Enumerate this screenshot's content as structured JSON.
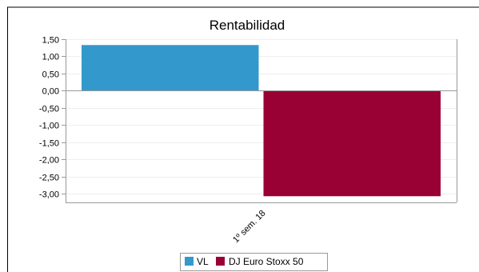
{
  "chart_data": {
    "type": "bar",
    "title": "Rentabilidad",
    "categories": [
      "1º sem. 18"
    ],
    "series": [
      {
        "name": "VL",
        "values": [
          1.33
        ],
        "color": "#3399cc"
      },
      {
        "name": "DJ Euro Stoxx 50",
        "values": [
          -3.07
        ],
        "color": "#990033"
      }
    ],
    "ylim": [
      -3.25,
      1.5
    ],
    "yticks": [
      1.5,
      1.0,
      0.5,
      0.0,
      -0.5,
      -1.0,
      -1.5,
      -2.0,
      -2.5,
      -3.0
    ],
    "ytick_labels": [
      "1,50",
      "1,00",
      "0,50",
      "0,00",
      "-0,50",
      "-1,00",
      "-1,50",
      "-2,00",
      "-2,50",
      "-3,00"
    ],
    "grid": true,
    "legend_position": "bottom-center"
  }
}
